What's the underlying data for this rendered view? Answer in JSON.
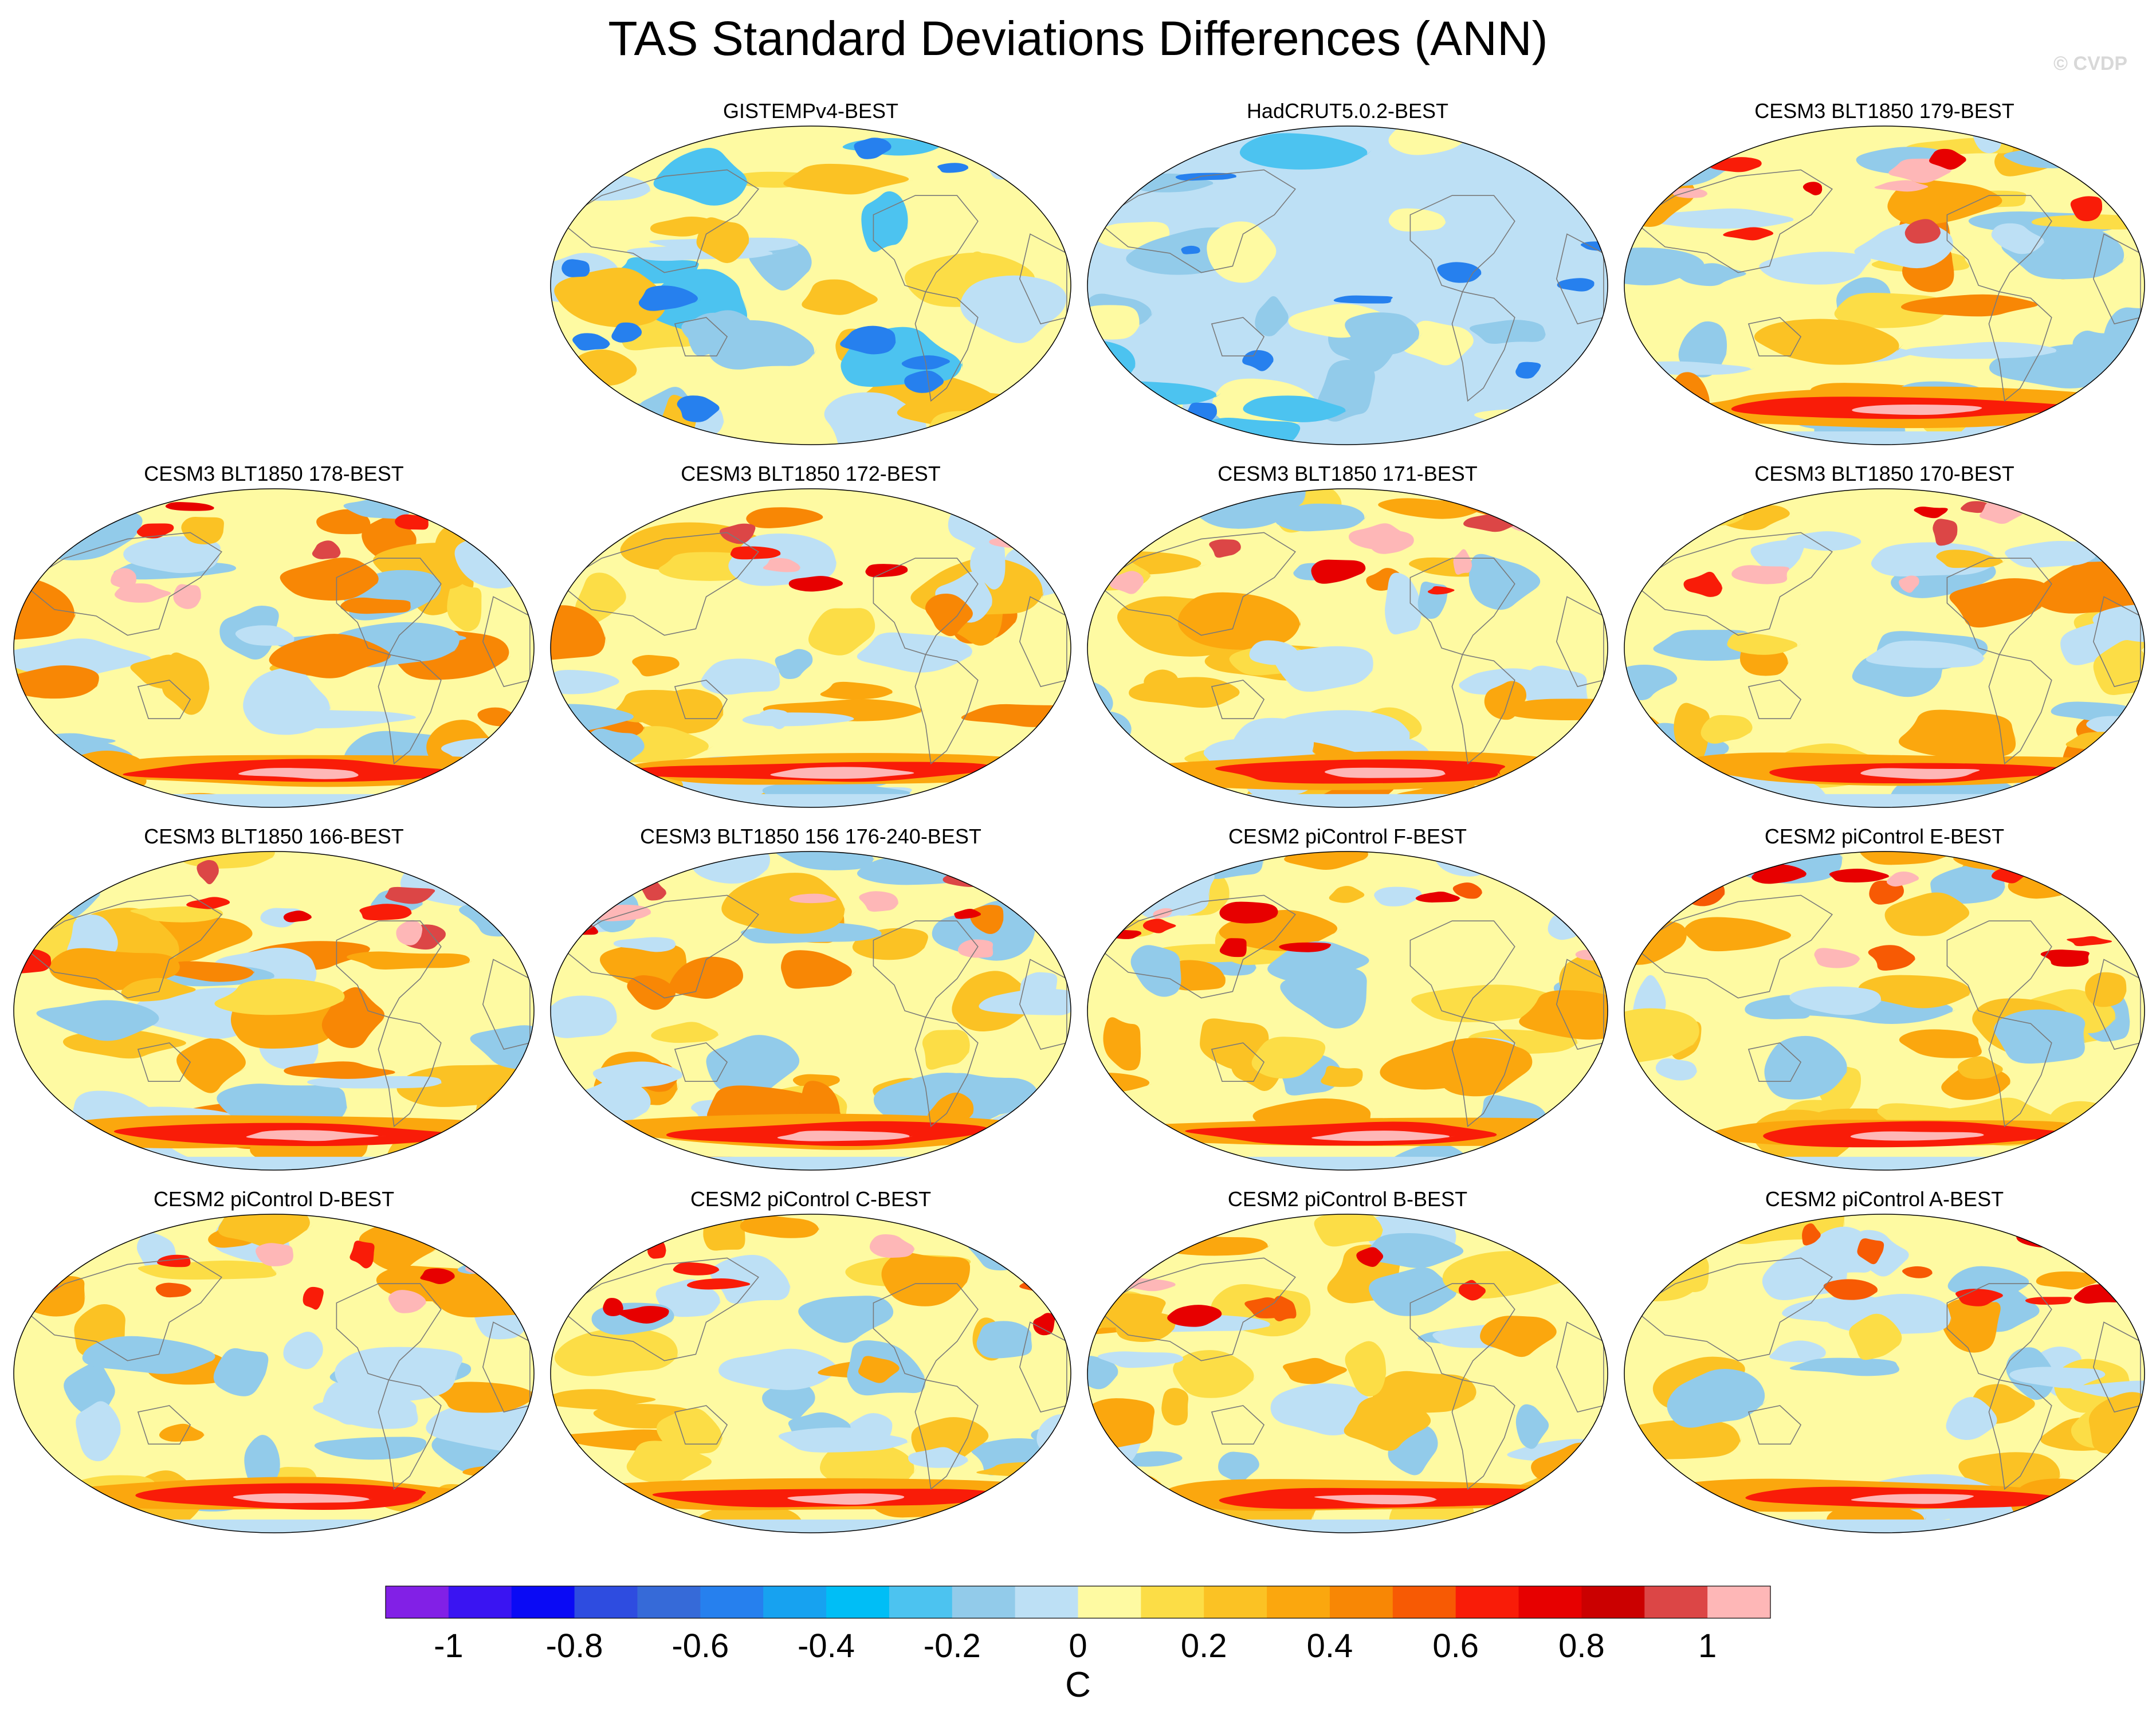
{
  "title": "TAS Standard Deviations Differences (ANN)",
  "watermark": "© CVDP",
  "panels": [
    {
      "title": "GISTEMPv4-BEST",
      "col": 1,
      "row": 0,
      "style": "obs1"
    },
    {
      "title": "HadCRUT5.0.2-BEST",
      "col": 2,
      "row": 0,
      "style": "obs2"
    },
    {
      "title": "CESM3 BLT1850 179-BEST",
      "col": 3,
      "row": 0,
      "style": "model3"
    },
    {
      "title": "CESM3 BLT1850 178-BEST",
      "col": 0,
      "row": 1,
      "style": "model3"
    },
    {
      "title": "CESM3 BLT1850 172-BEST",
      "col": 1,
      "row": 1,
      "style": "model3"
    },
    {
      "title": "CESM3 BLT1850 171-BEST",
      "col": 2,
      "row": 1,
      "style": "model3"
    },
    {
      "title": "CESM3 BLT1850 170-BEST",
      "col": 3,
      "row": 1,
      "style": "model3"
    },
    {
      "title": "CESM3 BLT1850 166-BEST",
      "col": 0,
      "row": 2,
      "style": "model3"
    },
    {
      "title": "CESM3 BLT1850 156 176-240-BEST",
      "col": 1,
      "row": 2,
      "style": "model3"
    },
    {
      "title": "CESM2 piControl F-BEST",
      "col": 2,
      "row": 2,
      "style": "model2"
    },
    {
      "title": "CESM2 piControl E-BEST",
      "col": 3,
      "row": 2,
      "style": "model2"
    },
    {
      "title": "CESM2 piControl D-BEST",
      "col": 0,
      "row": 3,
      "style": "model2"
    },
    {
      "title": "CESM2 piControl C-BEST",
      "col": 1,
      "row": 3,
      "style": "model2"
    },
    {
      "title": "CESM2 piControl B-BEST",
      "col": 2,
      "row": 3,
      "style": "model2"
    },
    {
      "title": "CESM2 piControl A-BEST",
      "col": 3,
      "row": 3,
      "style": "model2"
    }
  ],
  "chart_data": {
    "type": "heatmap",
    "title": "TAS Standard Deviations Differences (ANN)",
    "projection": "global map, Pacific-centered",
    "colorbar": {
      "units": "C",
      "range": [
        -1.1,
        1.1
      ],
      "levels": [
        -1.1,
        -1.0,
        -0.9,
        -0.8,
        -0.7,
        -0.6,
        -0.5,
        -0.4,
        -0.3,
        -0.2,
        -0.1,
        0.0,
        0.1,
        0.2,
        0.3,
        0.4,
        0.5,
        0.6,
        0.7,
        0.8,
        0.9,
        1.0,
        1.1
      ],
      "colors": [
        "#8220e6",
        "#3a14f2",
        "#0a0af5",
        "#2e4ce0",
        "#366ad8",
        "#2680ee",
        "#17a2f0",
        "#00bef6",
        "#4cc3f0",
        "#92cbea",
        "#bde0f5",
        "#fefaa2",
        "#fcdd46",
        "#fbc224",
        "#fba70e",
        "#f88705",
        "#f75a04",
        "#f91c08",
        "#e70000",
        "#cb0000",
        "#dc4646",
        "#feb7b7"
      ],
      "tick_values": [
        -1,
        -0.8,
        -0.6,
        -0.4,
        -0.2,
        0,
        0.2,
        0.4,
        0.6,
        0.8,
        1
      ],
      "tick_labels": [
        "-1",
        "-0.8",
        "-0.6",
        "-0.4",
        "-0.2",
        "0",
        "0.2",
        "0.4",
        "0.6",
        "0.8",
        "1"
      ]
    }
  }
}
